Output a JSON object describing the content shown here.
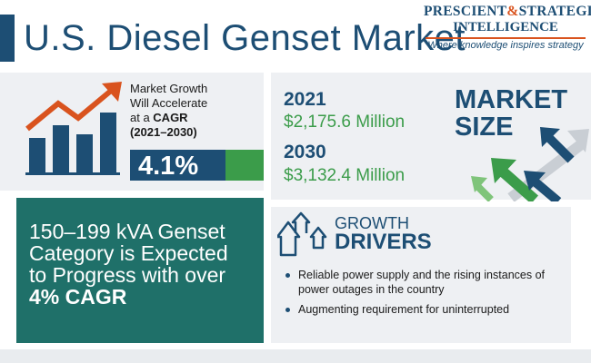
{
  "header": {
    "title": "U.S. Diesel Genset Market"
  },
  "logo": {
    "name_part1": "PRESCIENT",
    "ampersand": "&",
    "name_part2": "STRATEGIC",
    "name_line2": "INTELLIGENCE",
    "tagline": "Where knowledge inspires strategy"
  },
  "cagr": {
    "line1": "Market Growth",
    "line2": "Will Accelerate",
    "line3_prefix": "at a ",
    "line3_bold": "CAGR",
    "period": "(2021–2030)",
    "value": "4.1%"
  },
  "market_size": {
    "label_line1": "MARKET",
    "label_line2": "SIZE",
    "year1": "2021",
    "amount1": "$2,175.6 Million",
    "year2": "2030",
    "amount2": "$3,132.4 Million"
  },
  "segment": {
    "line1": "150–199 kVA Genset",
    "line2": "Category is Expected",
    "line3": "to Progress with over",
    "highlight": "4% CAGR"
  },
  "drivers": {
    "heading_line1": "GROWTH",
    "heading_line2": "DRIVERS",
    "items": [
      "Reliable power supply and the rising instances of power outages in the country",
      "Augmenting requirement for uninterrupted"
    ]
  },
  "colors": {
    "navy": "#1d4e74",
    "green": "#3b9c4a",
    "teal": "#1f7069",
    "orange": "#d9531e",
    "panel": "#eef0f3"
  },
  "icons": [
    "growth-chart-icon",
    "rising-arrows-icon",
    "growth-drivers-icon"
  ]
}
